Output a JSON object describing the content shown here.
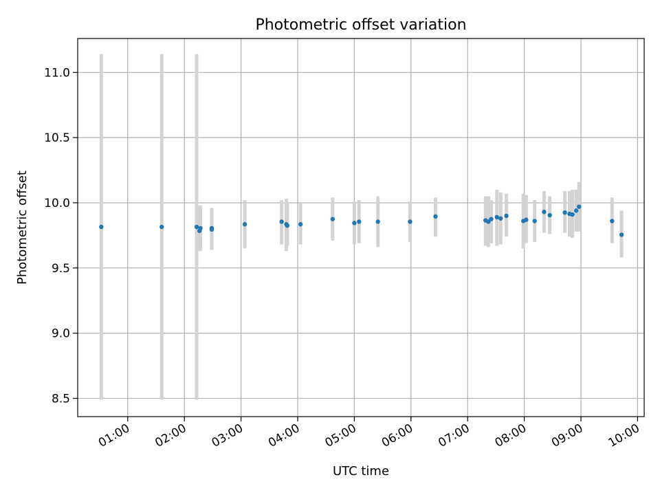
{
  "chart_data": {
    "type": "scatter",
    "title": "Photometric offset variation",
    "xlabel": "UTC time",
    "ylabel": "Photometric offset",
    "x_ticks": [
      "01:00",
      "02:00",
      "03:00",
      "04:00",
      "05:00",
      "06:00",
      "07:00",
      "08:00",
      "09:00",
      "10:00"
    ],
    "y_ticks": [
      "8.5",
      "9.0",
      "9.5",
      "10.0",
      "10.5",
      "11.0"
    ],
    "xlim": [
      "00:07",
      "10:07"
    ],
    "ylim": [
      8.36,
      11.26
    ],
    "grid": true,
    "errorbar_color": "#d3d3d3",
    "marker_color": "#1f77b4",
    "series": [
      {
        "points": [
          {
            "x": "00:32",
            "y": 9.815,
            "low": 8.49,
            "high": 11.14
          },
          {
            "x": "01:36",
            "y": 9.815,
            "low": 8.49,
            "high": 11.14
          },
          {
            "x": "02:13",
            "y": 9.815,
            "low": 8.49,
            "high": 11.14
          },
          {
            "x": "02:16",
            "y": 9.785,
            "low": 9.63,
            "high": 9.98
          },
          {
            "x": "02:17",
            "y": 9.805,
            "low": 9.63,
            "high": 9.98
          },
          {
            "x": "02:29",
            "y": 9.795,
            "low": 9.64,
            "high": 9.96
          },
          {
            "x": "02:29",
            "y": 9.805,
            "low": 9.64,
            "high": 9.96
          },
          {
            "x": "03:04",
            "y": 9.835,
            "low": 9.65,
            "high": 10.02
          },
          {
            "x": "03:43",
            "y": 9.855,
            "low": 9.68,
            "high": 10.02
          },
          {
            "x": "03:48",
            "y": 9.835,
            "low": 9.63,
            "high": 10.03
          },
          {
            "x": "03:49",
            "y": 9.825,
            "low": 9.67,
            "high": 10.0
          },
          {
            "x": "04:03",
            "y": 9.835,
            "low": 9.68,
            "high": 10.0
          },
          {
            "x": "04:37",
            "y": 9.875,
            "low": 9.71,
            "high": 10.04
          },
          {
            "x": "05:00",
            "y": 9.845,
            "low": 9.68,
            "high": 10.01
          },
          {
            "x": "05:05",
            "y": 9.855,
            "low": 9.69,
            "high": 10.02
          },
          {
            "x": "05:25",
            "y": 9.855,
            "low": 9.66,
            "high": 10.05
          },
          {
            "x": "05:59",
            "y": 9.855,
            "low": 9.7,
            "high": 10.01
          },
          {
            "x": "06:26",
            "y": 9.895,
            "low": 9.74,
            "high": 10.04
          },
          {
            "x": "07:19",
            "y": 9.865,
            "low": 9.67,
            "high": 10.05
          },
          {
            "x": "07:22",
            "y": 9.855,
            "low": 9.66,
            "high": 10.05
          },
          {
            "x": "07:25",
            "y": 9.875,
            "low": 9.69,
            "high": 10.02
          },
          {
            "x": "07:31",
            "y": 9.89,
            "low": 9.67,
            "high": 10.1
          },
          {
            "x": "07:35",
            "y": 9.88,
            "low": 9.68,
            "high": 10.08
          },
          {
            "x": "07:41",
            "y": 9.9,
            "low": 9.74,
            "high": 10.07
          },
          {
            "x": "07:59",
            "y": 9.86,
            "low": 9.65,
            "high": 10.07
          },
          {
            "x": "08:02",
            "y": 9.87,
            "low": 9.69,
            "high": 10.06
          },
          {
            "x": "08:11",
            "y": 9.86,
            "low": 9.7,
            "high": 10.02
          },
          {
            "x": "08:21",
            "y": 9.93,
            "low": 9.77,
            "high": 10.09
          },
          {
            "x": "08:27",
            "y": 9.905,
            "low": 9.76,
            "high": 10.05
          },
          {
            "x": "08:43",
            "y": 9.925,
            "low": 9.77,
            "high": 10.09
          },
          {
            "x": "08:48",
            "y": 9.915,
            "low": 9.74,
            "high": 10.09
          },
          {
            "x": "08:51",
            "y": 9.91,
            "low": 9.73,
            "high": 10.1
          },
          {
            "x": "08:55",
            "y": 9.94,
            "low": 9.78,
            "high": 10.1
          },
          {
            "x": "08:58",
            "y": 9.97,
            "low": 9.78,
            "high": 10.16
          },
          {
            "x": "09:33",
            "y": 9.86,
            "low": 9.69,
            "high": 10.04
          },
          {
            "x": "09:43",
            "y": 9.755,
            "low": 9.58,
            "high": 9.94
          }
        ]
      }
    ]
  }
}
